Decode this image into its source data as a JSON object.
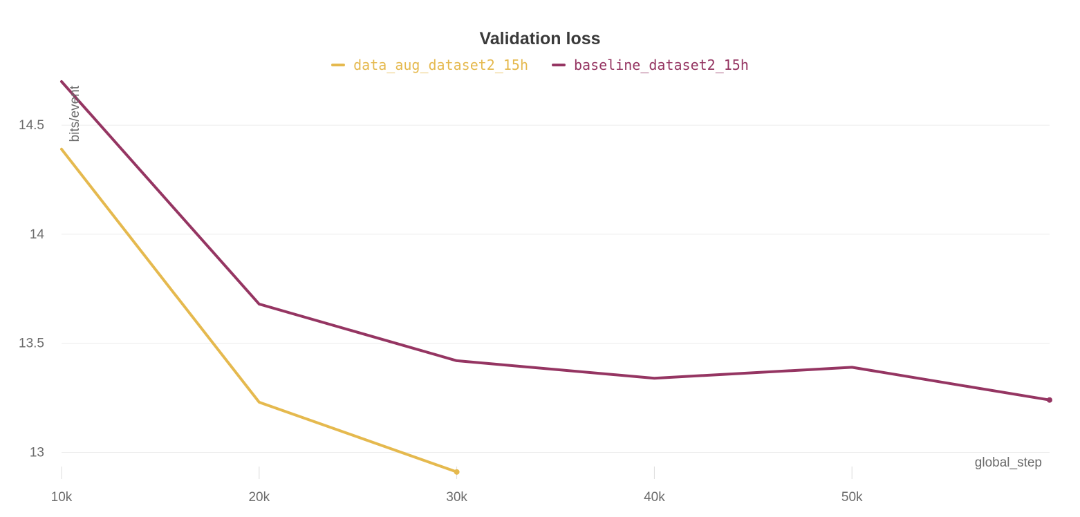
{
  "chart_data": {
    "type": "line",
    "title": "Validation loss",
    "xlabel": "global_step",
    "ylabel": "bits/event",
    "xlim": [
      10000,
      60000
    ],
    "ylim": [
      12.9,
      14.7
    ],
    "x_ticks": [
      10000,
      20000,
      30000,
      40000,
      50000
    ],
    "x_tick_labels": [
      "10k",
      "20k",
      "30k",
      "40k",
      "50k"
    ],
    "y_ticks": [
      13,
      13.5,
      14,
      14.5
    ],
    "y_tick_labels": [
      "13",
      "13.5",
      "14",
      "14.5"
    ],
    "grid": true,
    "legend_position": "top-center",
    "series": [
      {
        "name": "data_aug_dataset2_15h",
        "color": "#e5b94e",
        "x": [
          10000,
          20000,
          30000
        ],
        "y": [
          14.39,
          13.23,
          12.91
        ]
      },
      {
        "name": "baseline_dataset2_15h",
        "color": "#953562",
        "x": [
          10000,
          20000,
          30000,
          40000,
          50000,
          60000
        ],
        "y": [
          14.7,
          13.68,
          13.42,
          13.34,
          13.39,
          13.24
        ]
      }
    ]
  }
}
